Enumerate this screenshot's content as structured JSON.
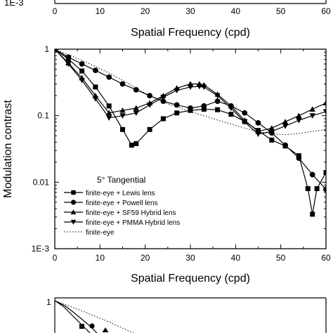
{
  "chart_data": [
    {
      "type": "line",
      "partial": true,
      "xlabel": "Spatial Frequency (cpd)",
      "xticks": [
        "0",
        "10",
        "20",
        "30",
        "40",
        "50",
        "60"
      ],
      "yticks_visible": [
        "1E-3"
      ],
      "xlim": [
        0,
        60
      ]
    },
    {
      "type": "line",
      "title": "",
      "annotation": "5° Tangential",
      "xlabel": "Spatial Frequency (cpd)",
      "ylabel": "Modulation contrast",
      "xlim": [
        0,
        60
      ],
      "ylim": [
        0.001,
        1
      ],
      "yscale": "log",
      "grid": false,
      "legend_position": "lower-left",
      "xticks": [
        {
          "value": 0,
          "label": "0"
        },
        {
          "value": 10,
          "label": "10"
        },
        {
          "value": 20,
          "label": "20"
        },
        {
          "value": 30,
          "label": "30"
        },
        {
          "value": 40,
          "label": "40"
        },
        {
          "value": 50,
          "label": "50"
        },
        {
          "value": 60,
          "label": "60"
        }
      ],
      "yticks": [
        {
          "value": 1,
          "label": "1"
        },
        {
          "value": 0.1,
          "label": "0.1"
        },
        {
          "value": 0.01,
          "label": "0.01"
        },
        {
          "value": 0.001,
          "label": "1E-3"
        }
      ],
      "series": [
        {
          "name": "finite-eye + Lewis lens",
          "marker": "square",
          "line": "solid",
          "x": [
            0,
            3,
            6,
            9,
            12,
            15,
            17,
            18,
            21,
            24,
            27,
            30,
            33,
            36,
            39,
            42,
            45,
            48,
            51,
            54,
            56,
            57,
            58,
            60
          ],
          "y": [
            1,
            0.71,
            0.47,
            0.27,
            0.14,
            0.062,
            0.036,
            0.038,
            0.062,
            0.09,
            0.11,
            0.12,
            0.125,
            0.123,
            0.105,
            0.082,
            0.06,
            0.043,
            0.035,
            0.025,
            0.008,
            0.0033,
            0.008,
            0.014
          ]
        },
        {
          "name": "finite-eye + Powell lens",
          "marker": "circle",
          "line": "solid",
          "x": [
            0,
            3,
            6,
            9,
            12,
            15,
            18,
            21,
            24,
            27,
            30,
            33,
            36,
            39,
            42,
            45,
            48,
            51,
            54,
            57,
            60
          ],
          "y": [
            1,
            0.76,
            0.6,
            0.48,
            0.38,
            0.3,
            0.245,
            0.2,
            0.165,
            0.145,
            0.13,
            0.14,
            0.165,
            0.14,
            0.11,
            0.078,
            0.055,
            0.036,
            0.023,
            0.013,
            0.0078
          ]
        },
        {
          "name": "finite-eye + SF59 Hybrid lens",
          "marker": "triangle-up",
          "line": "solid",
          "x": [
            0,
            3,
            6,
            9,
            12,
            15,
            18,
            21,
            24,
            27,
            30,
            32,
            33,
            36,
            39,
            42,
            45,
            48,
            51,
            54,
            57,
            60
          ],
          "y": [
            1,
            0.62,
            0.37,
            0.2,
            0.11,
            0.12,
            0.13,
            0.155,
            0.2,
            0.26,
            0.3,
            0.3,
            0.29,
            0.21,
            0.14,
            0.085,
            0.058,
            0.065,
            0.081,
            0.1,
            0.125,
            0.155
          ]
        },
        {
          "name": "finite-eye + PMMA Hybrid lens",
          "marker": "triangle-down",
          "line": "solid",
          "x": [
            0,
            3,
            6,
            9,
            12,
            15,
            18,
            21,
            24,
            27,
            30,
            32,
            33,
            36,
            39,
            42,
            45,
            48,
            51,
            54,
            57,
            60
          ],
          "y": [
            1,
            0.6,
            0.34,
            0.18,
            0.093,
            0.1,
            0.11,
            0.145,
            0.19,
            0.24,
            0.27,
            0.275,
            0.27,
            0.2,
            0.13,
            0.08,
            0.053,
            0.058,
            0.07,
            0.085,
            0.1,
            0.115
          ]
        },
        {
          "name": "finite-eye",
          "marker": "none",
          "line": "dotted",
          "x": [
            0,
            3,
            6,
            9,
            12,
            15,
            18,
            21,
            24,
            27,
            30,
            33,
            36,
            39,
            42,
            45,
            48,
            51,
            54,
            57,
            60
          ],
          "y": [
            1,
            0.83,
            0.68,
            0.55,
            0.44,
            0.34,
            0.26,
            0.2,
            0.16,
            0.135,
            0.115,
            0.1,
            0.086,
            0.075,
            0.065,
            0.058,
            0.053,
            0.052,
            0.054,
            0.058,
            0.062
          ]
        }
      ]
    },
    {
      "type": "line",
      "partial": true,
      "yticks_visible": [
        "1"
      ]
    }
  ]
}
